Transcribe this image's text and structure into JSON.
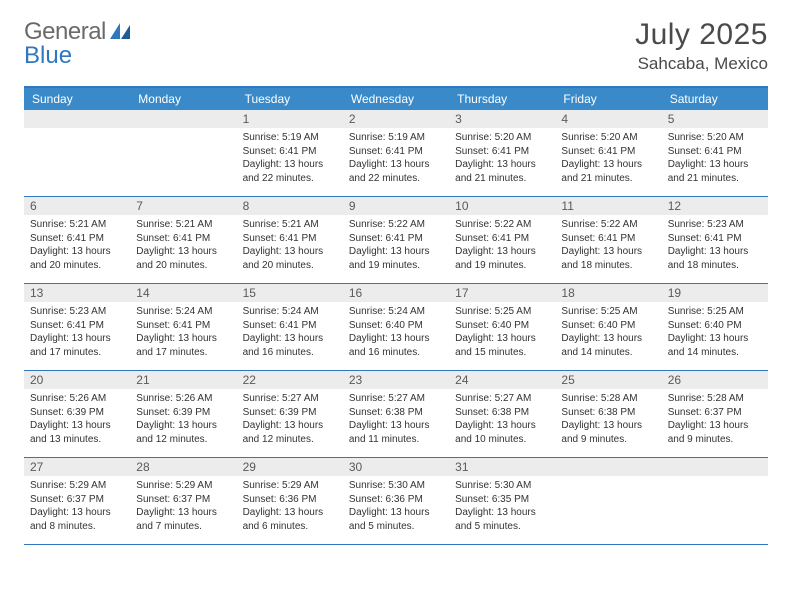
{
  "logo": {
    "text1": "General",
    "text2": "Blue"
  },
  "title": {
    "month": "July 2025",
    "location": "Sahcaba, Mexico"
  },
  "colors": {
    "header_bar": "#3a8ac9",
    "border": "#2f78bd",
    "daynum_bg": "#ececec",
    "text_dark": "#333333",
    "text_muted": "#5a5a5a",
    "logo_gray": "#6a6a6a",
    "logo_blue": "#2f78bd"
  },
  "dow": [
    "Sunday",
    "Monday",
    "Tuesday",
    "Wednesday",
    "Thursday",
    "Friday",
    "Saturday"
  ],
  "weeks": [
    [
      {
        "n": "",
        "sr": "",
        "ss": "",
        "dl": ""
      },
      {
        "n": "",
        "sr": "",
        "ss": "",
        "dl": ""
      },
      {
        "n": "1",
        "sr": "Sunrise: 5:19 AM",
        "ss": "Sunset: 6:41 PM",
        "dl": "Daylight: 13 hours and 22 minutes."
      },
      {
        "n": "2",
        "sr": "Sunrise: 5:19 AM",
        "ss": "Sunset: 6:41 PM",
        "dl": "Daylight: 13 hours and 22 minutes."
      },
      {
        "n": "3",
        "sr": "Sunrise: 5:20 AM",
        "ss": "Sunset: 6:41 PM",
        "dl": "Daylight: 13 hours and 21 minutes."
      },
      {
        "n": "4",
        "sr": "Sunrise: 5:20 AM",
        "ss": "Sunset: 6:41 PM",
        "dl": "Daylight: 13 hours and 21 minutes."
      },
      {
        "n": "5",
        "sr": "Sunrise: 5:20 AM",
        "ss": "Sunset: 6:41 PM",
        "dl": "Daylight: 13 hours and 21 minutes."
      }
    ],
    [
      {
        "n": "6",
        "sr": "Sunrise: 5:21 AM",
        "ss": "Sunset: 6:41 PM",
        "dl": "Daylight: 13 hours and 20 minutes."
      },
      {
        "n": "7",
        "sr": "Sunrise: 5:21 AM",
        "ss": "Sunset: 6:41 PM",
        "dl": "Daylight: 13 hours and 20 minutes."
      },
      {
        "n": "8",
        "sr": "Sunrise: 5:21 AM",
        "ss": "Sunset: 6:41 PM",
        "dl": "Daylight: 13 hours and 20 minutes."
      },
      {
        "n": "9",
        "sr": "Sunrise: 5:22 AM",
        "ss": "Sunset: 6:41 PM",
        "dl": "Daylight: 13 hours and 19 minutes."
      },
      {
        "n": "10",
        "sr": "Sunrise: 5:22 AM",
        "ss": "Sunset: 6:41 PM",
        "dl": "Daylight: 13 hours and 19 minutes."
      },
      {
        "n": "11",
        "sr": "Sunrise: 5:22 AM",
        "ss": "Sunset: 6:41 PM",
        "dl": "Daylight: 13 hours and 18 minutes."
      },
      {
        "n": "12",
        "sr": "Sunrise: 5:23 AM",
        "ss": "Sunset: 6:41 PM",
        "dl": "Daylight: 13 hours and 18 minutes."
      }
    ],
    [
      {
        "n": "13",
        "sr": "Sunrise: 5:23 AM",
        "ss": "Sunset: 6:41 PM",
        "dl": "Daylight: 13 hours and 17 minutes."
      },
      {
        "n": "14",
        "sr": "Sunrise: 5:24 AM",
        "ss": "Sunset: 6:41 PM",
        "dl": "Daylight: 13 hours and 17 minutes."
      },
      {
        "n": "15",
        "sr": "Sunrise: 5:24 AM",
        "ss": "Sunset: 6:41 PM",
        "dl": "Daylight: 13 hours and 16 minutes."
      },
      {
        "n": "16",
        "sr": "Sunrise: 5:24 AM",
        "ss": "Sunset: 6:40 PM",
        "dl": "Daylight: 13 hours and 16 minutes."
      },
      {
        "n": "17",
        "sr": "Sunrise: 5:25 AM",
        "ss": "Sunset: 6:40 PM",
        "dl": "Daylight: 13 hours and 15 minutes."
      },
      {
        "n": "18",
        "sr": "Sunrise: 5:25 AM",
        "ss": "Sunset: 6:40 PM",
        "dl": "Daylight: 13 hours and 14 minutes."
      },
      {
        "n": "19",
        "sr": "Sunrise: 5:25 AM",
        "ss": "Sunset: 6:40 PM",
        "dl": "Daylight: 13 hours and 14 minutes."
      }
    ],
    [
      {
        "n": "20",
        "sr": "Sunrise: 5:26 AM",
        "ss": "Sunset: 6:39 PM",
        "dl": "Daylight: 13 hours and 13 minutes."
      },
      {
        "n": "21",
        "sr": "Sunrise: 5:26 AM",
        "ss": "Sunset: 6:39 PM",
        "dl": "Daylight: 13 hours and 12 minutes."
      },
      {
        "n": "22",
        "sr": "Sunrise: 5:27 AM",
        "ss": "Sunset: 6:39 PM",
        "dl": "Daylight: 13 hours and 12 minutes."
      },
      {
        "n": "23",
        "sr": "Sunrise: 5:27 AM",
        "ss": "Sunset: 6:38 PM",
        "dl": "Daylight: 13 hours and 11 minutes."
      },
      {
        "n": "24",
        "sr": "Sunrise: 5:27 AM",
        "ss": "Sunset: 6:38 PM",
        "dl": "Daylight: 13 hours and 10 minutes."
      },
      {
        "n": "25",
        "sr": "Sunrise: 5:28 AM",
        "ss": "Sunset: 6:38 PM",
        "dl": "Daylight: 13 hours and 9 minutes."
      },
      {
        "n": "26",
        "sr": "Sunrise: 5:28 AM",
        "ss": "Sunset: 6:37 PM",
        "dl": "Daylight: 13 hours and 9 minutes."
      }
    ],
    [
      {
        "n": "27",
        "sr": "Sunrise: 5:29 AM",
        "ss": "Sunset: 6:37 PM",
        "dl": "Daylight: 13 hours and 8 minutes."
      },
      {
        "n": "28",
        "sr": "Sunrise: 5:29 AM",
        "ss": "Sunset: 6:37 PM",
        "dl": "Daylight: 13 hours and 7 minutes."
      },
      {
        "n": "29",
        "sr": "Sunrise: 5:29 AM",
        "ss": "Sunset: 6:36 PM",
        "dl": "Daylight: 13 hours and 6 minutes."
      },
      {
        "n": "30",
        "sr": "Sunrise: 5:30 AM",
        "ss": "Sunset: 6:36 PM",
        "dl": "Daylight: 13 hours and 5 minutes."
      },
      {
        "n": "31",
        "sr": "Sunrise: 5:30 AM",
        "ss": "Sunset: 6:35 PM",
        "dl": "Daylight: 13 hours and 5 minutes."
      },
      {
        "n": "",
        "sr": "",
        "ss": "",
        "dl": ""
      },
      {
        "n": "",
        "sr": "",
        "ss": "",
        "dl": ""
      }
    ]
  ]
}
